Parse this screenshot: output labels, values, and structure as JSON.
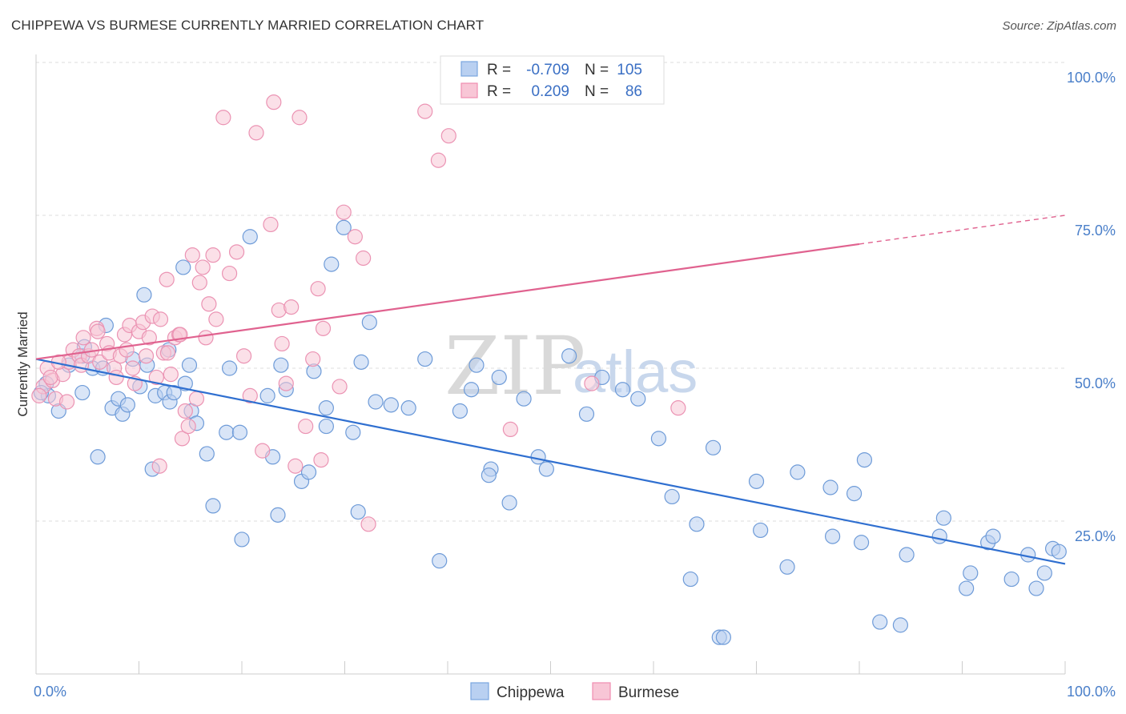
{
  "header": {
    "title": "CHIPPEWA VS BURMESE CURRENTLY MARRIED CORRELATION CHART",
    "source": "Source: ZipAtlas.com"
  },
  "watermark": {
    "zip": "ZIP",
    "atlas": "atlas"
  },
  "legend": {
    "r_label": "R =",
    "n_label": "N =",
    "rows": [
      {
        "r": "-0.709",
        "n": "105",
        "color": "#7aa6e0"
      },
      {
        "r": "0.209",
        "n": "86",
        "color": "#f08db0"
      }
    ]
  },
  "bottom_legend": [
    "Chippewa",
    "Burmese"
  ],
  "colors": {
    "chippewa_fill": "#b9d0f1",
    "chippewa_stroke": "#6e9bd8",
    "chippewa_line": "#2f6fd0",
    "burmese_fill": "#f8c6d6",
    "burmese_stroke": "#eb93b3",
    "burmese_line": "#e0628f",
    "tick_label": "#4a7fc9"
  },
  "chart_data": {
    "type": "scatter",
    "title": "CHIPPEWA VS BURMESE CURRENTLY MARRIED CORRELATION CHART",
    "xlabel": "",
    "ylabel": "Currently Married",
    "xlim": [
      0,
      100
    ],
    "ylim": [
      0,
      100
    ],
    "x_tick_labels": [
      "0.0%",
      "100.0%"
    ],
    "y_tick_labels": [
      "25.0%",
      "50.0%",
      "75.0%",
      "100.0%"
    ],
    "y_ticks": [
      25,
      50,
      75,
      100
    ],
    "grid": "horizontal dashed",
    "legend_position": "top-center",
    "series": [
      {
        "name": "Chippewa",
        "r": -0.709,
        "n": 105,
        "trend": {
          "x": [
            0,
            100
          ],
          "y": [
            51.5,
            18.0
          ]
        },
        "points": [
          [
            1.0,
            47.5
          ],
          [
            1.2,
            45.5
          ],
          [
            2.2,
            43.0
          ],
          [
            4.5,
            52.0
          ],
          [
            5.5,
            50.0
          ],
          [
            4.5,
            46.0
          ],
          [
            6.0,
            35.5
          ],
          [
            4.7,
            53.5
          ],
          [
            6.5,
            50.0
          ],
          [
            7.4,
            43.5
          ],
          [
            8.4,
            42.5
          ],
          [
            6.8,
            57.0
          ],
          [
            8.0,
            45.0
          ],
          [
            8.9,
            44.0
          ],
          [
            9.4,
            51.5
          ],
          [
            10.1,
            47.0
          ],
          [
            10.5,
            62.0
          ],
          [
            10.8,
            50.5
          ],
          [
            11.6,
            45.5
          ],
          [
            12.5,
            46.0
          ],
          [
            11.3,
            33.5
          ],
          [
            12.9,
            53.0
          ],
          [
            13.0,
            44.5
          ],
          [
            13.4,
            46.0
          ],
          [
            14.5,
            47.5
          ],
          [
            14.3,
            66.5
          ],
          [
            14.9,
            50.5
          ],
          [
            15.1,
            43.0
          ],
          [
            15.6,
            41.0
          ],
          [
            16.6,
            36.0
          ],
          [
            17.2,
            27.5
          ],
          [
            18.5,
            39.5
          ],
          [
            18.8,
            50.0
          ],
          [
            19.8,
            39.5
          ],
          [
            20.0,
            22.0
          ],
          [
            20.8,
            71.5
          ],
          [
            22.5,
            45.5
          ],
          [
            23.0,
            35.5
          ],
          [
            23.5,
            26.0
          ],
          [
            23.8,
            50.5
          ],
          [
            24.3,
            46.5
          ],
          [
            25.8,
            31.5
          ],
          [
            27.0,
            49.5
          ],
          [
            28.2,
            40.5
          ],
          [
            28.2,
            43.5
          ],
          [
            28.7,
            67.0
          ],
          [
            29.9,
            73.0
          ],
          [
            30.8,
            39.5
          ],
          [
            31.3,
            26.5
          ],
          [
            31.6,
            51.0
          ],
          [
            32.4,
            57.5
          ],
          [
            33.0,
            44.5
          ],
          [
            34.5,
            44.0
          ],
          [
            36.2,
            43.5
          ],
          [
            37.8,
            51.5
          ],
          [
            39.2,
            18.5
          ],
          [
            41.2,
            43.0
          ],
          [
            42.3,
            46.5
          ],
          [
            42.8,
            50.5
          ],
          [
            44.2,
            33.5
          ],
          [
            44.0,
            32.5
          ],
          [
            45.0,
            48.5
          ],
          [
            46.0,
            28.0
          ],
          [
            47.4,
            45.0
          ],
          [
            48.8,
            35.5
          ],
          [
            49.6,
            33.5
          ],
          [
            51.8,
            52.0
          ],
          [
            55.0,
            48.5
          ],
          [
            53.5,
            42.5
          ],
          [
            57.0,
            46.5
          ],
          [
            58.5,
            45.0
          ],
          [
            60.5,
            38.5
          ],
          [
            61.8,
            29.0
          ],
          [
            63.6,
            15.5
          ],
          [
            64.2,
            24.5
          ],
          [
            65.8,
            37.0
          ],
          [
            66.4,
            6.0
          ],
          [
            66.8,
            6.0
          ],
          [
            70.0,
            31.5
          ],
          [
            70.4,
            23.5
          ],
          [
            73.0,
            17.5
          ],
          [
            74.0,
            33.0
          ],
          [
            77.2,
            30.5
          ],
          [
            77.4,
            22.5
          ],
          [
            79.5,
            29.5
          ],
          [
            80.2,
            21.5
          ],
          [
            80.5,
            35.0
          ],
          [
            82.0,
            8.5
          ],
          [
            84.0,
            8.0
          ],
          [
            84.6,
            19.5
          ],
          [
            87.8,
            22.5
          ],
          [
            88.2,
            25.5
          ],
          [
            90.4,
            14.0
          ],
          [
            90.8,
            16.5
          ],
          [
            92.5,
            21.5
          ],
          [
            93.0,
            22.5
          ],
          [
            94.8,
            15.5
          ],
          [
            96.4,
            19.5
          ],
          [
            97.2,
            14.0
          ],
          [
            98.0,
            16.5
          ],
          [
            98.8,
            20.5
          ],
          [
            99.4,
            20.0
          ],
          [
            0.5,
            46.0
          ],
          [
            3.2,
            50.5
          ],
          [
            26.5,
            33.0
          ]
        ]
      },
      {
        "name": "Burmese",
        "r": 0.209,
        "n": 86,
        "trend": {
          "x": [
            0,
            100
          ],
          "y": [
            51.5,
            75.0
          ]
        },
        "points": [
          [
            0.7,
            47.0
          ],
          [
            1.1,
            50.0
          ],
          [
            1.6,
            48.0
          ],
          [
            1.9,
            45.0
          ],
          [
            2.6,
            49.0
          ],
          [
            3.2,
            51.0
          ],
          [
            3.6,
            53.0
          ],
          [
            4.2,
            52.0
          ],
          [
            4.4,
            50.5
          ],
          [
            4.6,
            55.0
          ],
          [
            5.1,
            52.0
          ],
          [
            5.4,
            53.0
          ],
          [
            5.9,
            56.5
          ],
          [
            6.2,
            51.0
          ],
          [
            6.9,
            54.0
          ],
          [
            7.1,
            52.5
          ],
          [
            7.6,
            50.0
          ],
          [
            7.8,
            48.5
          ],
          [
            8.2,
            52.0
          ],
          [
            8.6,
            55.5
          ],
          [
            9.1,
            57.0
          ],
          [
            9.4,
            50.0
          ],
          [
            9.6,
            47.5
          ],
          [
            10.0,
            56.0
          ],
          [
            10.4,
            57.5
          ],
          [
            10.7,
            52.0
          ],
          [
            11.0,
            55.0
          ],
          [
            11.3,
            58.5
          ],
          [
            11.7,
            48.5
          ],
          [
            12.1,
            58.0
          ],
          [
            12.4,
            52.5
          ],
          [
            12.7,
            64.5
          ],
          [
            13.1,
            49.0
          ],
          [
            13.5,
            55.0
          ],
          [
            13.9,
            55.5
          ],
          [
            14.2,
            38.5
          ],
          [
            14.5,
            43.0
          ],
          [
            14.8,
            40.5
          ],
          [
            15.2,
            68.5
          ],
          [
            15.6,
            45.0
          ],
          [
            15.9,
            64.0
          ],
          [
            16.2,
            66.5
          ],
          [
            16.5,
            55.0
          ],
          [
            16.8,
            60.5
          ],
          [
            17.2,
            68.5
          ],
          [
            17.5,
            58.0
          ],
          [
            18.2,
            91.0
          ],
          [
            18.8,
            65.5
          ],
          [
            19.5,
            69.0
          ],
          [
            20.2,
            52.0
          ],
          [
            20.8,
            45.5
          ],
          [
            21.4,
            88.5
          ],
          [
            22.0,
            36.5
          ],
          [
            22.8,
            73.5
          ],
          [
            23.1,
            93.5
          ],
          [
            23.6,
            59.5
          ],
          [
            23.9,
            54.0
          ],
          [
            24.3,
            47.5
          ],
          [
            24.8,
            60.0
          ],
          [
            25.2,
            34.0
          ],
          [
            25.6,
            91.0
          ],
          [
            26.2,
            40.5
          ],
          [
            26.9,
            51.5
          ],
          [
            27.4,
            63.0
          ],
          [
            27.9,
            56.5
          ],
          [
            27.7,
            35.0
          ],
          [
            29.5,
            47.0
          ],
          [
            29.9,
            75.5
          ],
          [
            31.0,
            71.5
          ],
          [
            31.8,
            68.0
          ],
          [
            32.3,
            24.5
          ],
          [
            37.8,
            92.0
          ],
          [
            39.1,
            84.0
          ],
          [
            40.1,
            88.0
          ],
          [
            46.1,
            40.0
          ],
          [
            54.0,
            47.5
          ],
          [
            62.4,
            43.5
          ],
          [
            12.0,
            34.0
          ],
          [
            6.0,
            56.0
          ],
          [
            3.0,
            44.5
          ],
          [
            8.8,
            53.0
          ],
          [
            12.8,
            52.5
          ],
          [
            14.0,
            55.5
          ],
          [
            2.2,
            51.0
          ],
          [
            0.3,
            45.5
          ],
          [
            1.4,
            48.5
          ]
        ]
      }
    ]
  }
}
